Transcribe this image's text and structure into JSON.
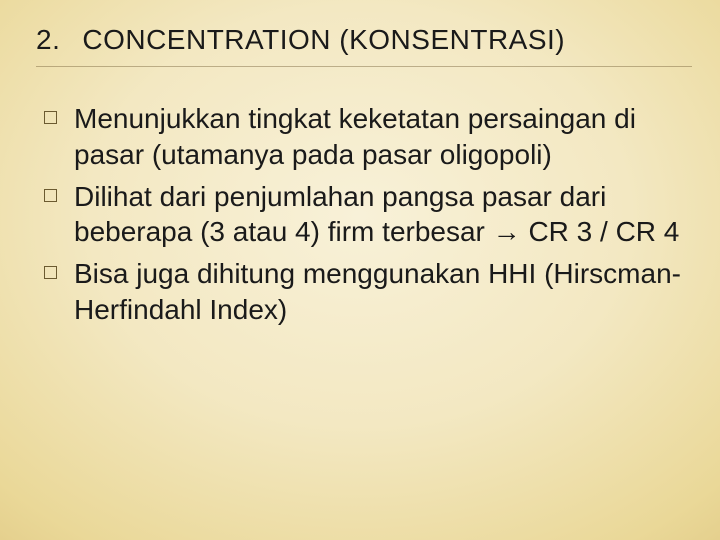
{
  "title": {
    "number": "2.",
    "text": "CONCENTRATION (KONSENTRASI)"
  },
  "bullets": [
    " Menunjukkan tingkat keketatan persaingan di pasar (utamanya pada pasar oligopoli)",
    " Dilihat dari penjumlahan pangsa pasar dari beberapa (3 atau 4)  firm terbesar → CR 3 / CR 4",
    " Bisa juga dihitung menggunakan HHI (Hirscman-Herfindahl Index)"
  ]
}
